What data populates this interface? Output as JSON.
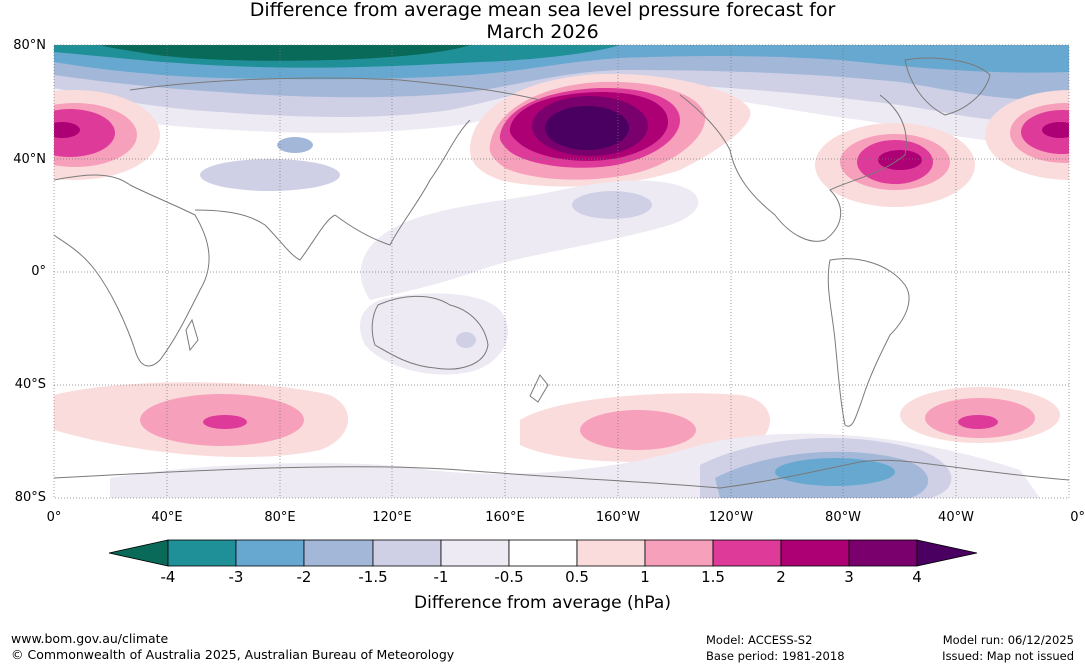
{
  "title": {
    "line1": "Difference from average mean sea level pressure forecast for",
    "line2": "March 2026"
  },
  "map": {
    "lat_labels": [
      "80°N",
      "40°N",
      "0°",
      "40°S",
      "80°S"
    ],
    "lon_labels": [
      "0°",
      "40°E",
      "80°E",
      "120°E",
      "160°E",
      "160°W",
      "120°W",
      "80°W",
      "40°W",
      "0°"
    ]
  },
  "colorbar": {
    "ticks": [
      "-4",
      "-3",
      "-2",
      "-1.5",
      "-1",
      "-0.5",
      "0.5",
      "1",
      "1.5",
      "2",
      "3",
      "4"
    ],
    "colors": [
      "#0a6a5a",
      "#1f8f98",
      "#67a8d0",
      "#a3b8d8",
      "#cfd0e6",
      "#eeeaf3",
      "#ffffff",
      "#fbdcdc",
      "#f7a0bc",
      "#dd3a9a",
      "#ad0075",
      "#7a006d",
      "#4a0060"
    ],
    "label": "Difference from average (hPa)"
  },
  "footer": {
    "website": "www.bom.gov.au/climate",
    "copyright": "© Commonwealth of Australia 2025, Australian Bureau of Meteorology",
    "model": "Model: ACCESS-S2",
    "base_period": "Base period: 1981-2018",
    "model_run": "Model run: 06/12/2025",
    "issued": "Issued: Map not issued"
  }
}
